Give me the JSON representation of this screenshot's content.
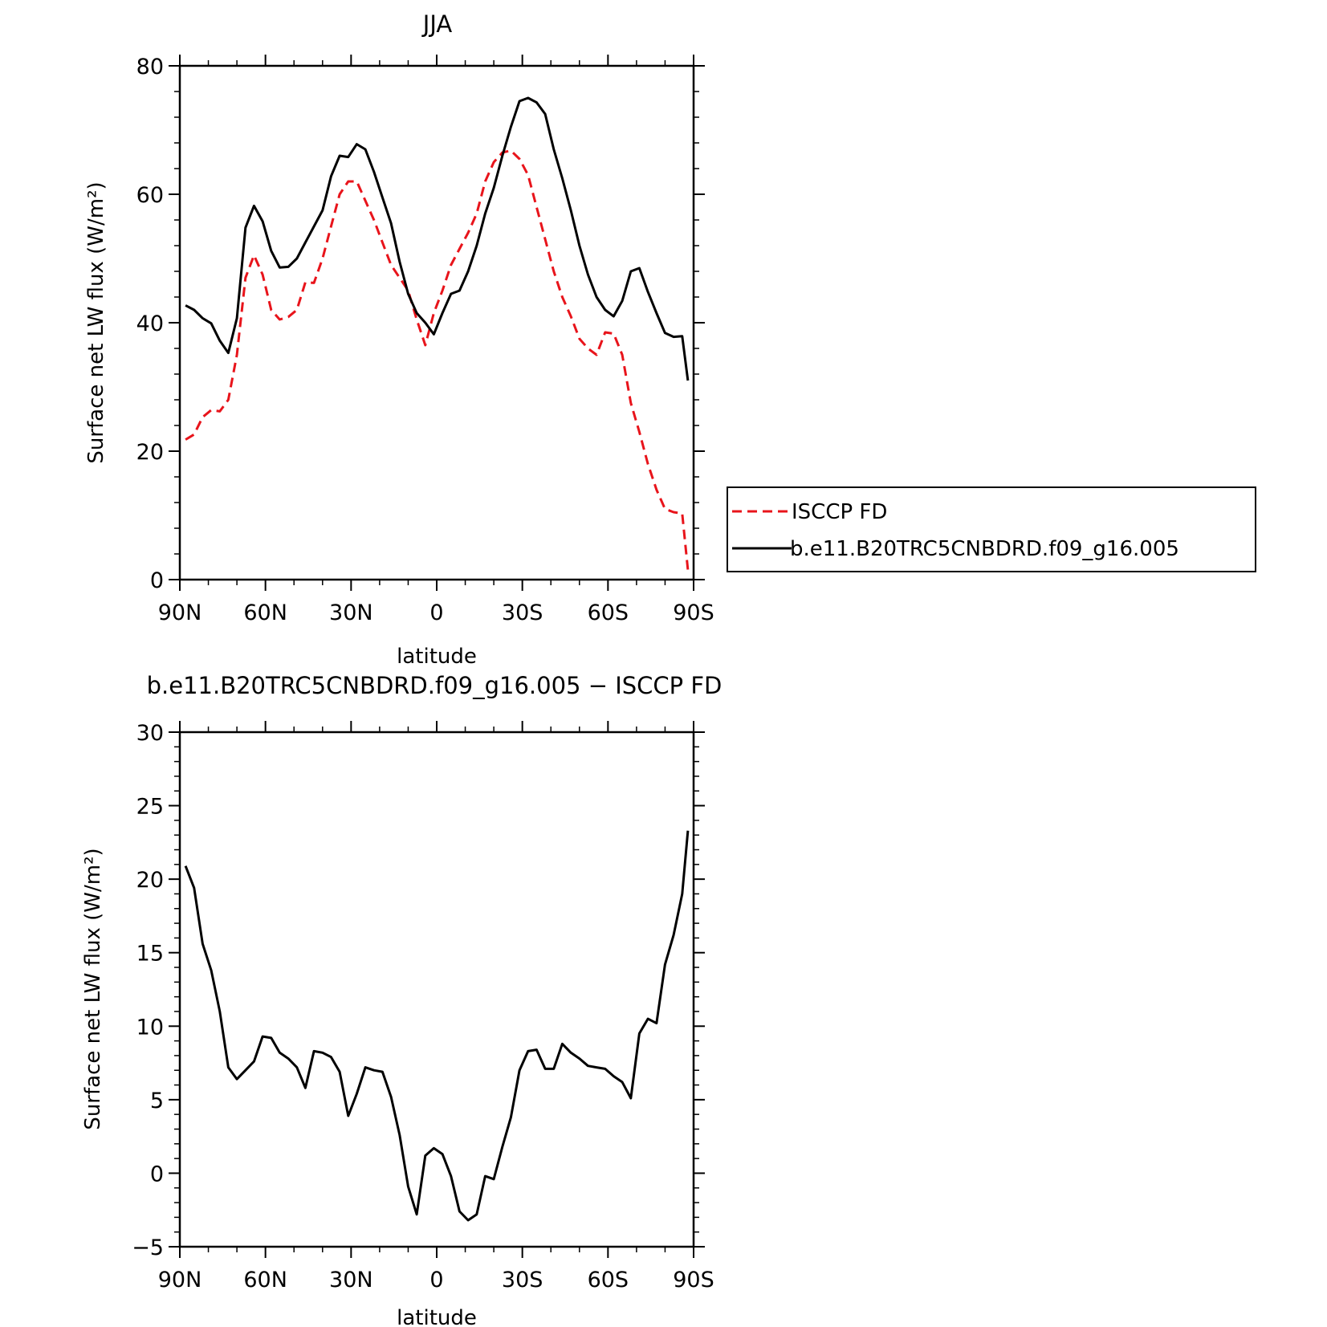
{
  "chart_data": [
    {
      "type": "line",
      "title": "JJA",
      "xlabel": "latitude",
      "ylabel": "Surface net LW flux (W/m²)",
      "xlim": [
        -90,
        90
      ],
      "ylim": [
        0,
        80
      ],
      "x_direction": "north-to-south",
      "xticks": [
        -90,
        -60,
        -30,
        0,
        30,
        60,
        90
      ],
      "xtick_labels": [
        "90N",
        "60N",
        "30N",
        "0",
        "30S",
        "60S",
        "90S"
      ],
      "yticks": [
        0,
        20,
        40,
        60,
        80
      ],
      "ytick_labels": [
        "0",
        "20",
        "40",
        "60",
        "80"
      ],
      "legend_placement": "right",
      "series": [
        {
          "name": "ISCCP FD",
          "color": "#e8141b",
          "style": "dashed",
          "x": [
            -88,
            -85,
            -82,
            -79,
            -76,
            -73,
            -70,
            -67,
            -64,
            -61,
            -58,
            -55,
            -52,
            -49,
            -46,
            -43,
            -40,
            -37,
            -34,
            -31,
            -28,
            -25,
            -22,
            -19,
            -16,
            -13,
            -10,
            -7,
            -4,
            -1,
            2,
            5,
            8,
            11,
            14,
            17,
            20,
            23,
            26,
            29,
            32,
            35,
            38,
            41,
            44,
            47,
            50,
            53,
            56,
            59,
            62,
            65,
            68,
            71,
            74,
            77,
            80,
            83,
            86,
            88
          ],
          "y": [
            21.8,
            22.6,
            25.3,
            26.4,
            26.2,
            28.0,
            35.0,
            47.0,
            50.5,
            47.5,
            42.0,
            40.5,
            40.9,
            42.0,
            46.3,
            46.2,
            50.0,
            55.0,
            60.0,
            62.0,
            62.0,
            59.0,
            56.0,
            52.5,
            49.0,
            47.0,
            45.0,
            40.5,
            36.5,
            41.5,
            45.0,
            49.0,
            51.5,
            54.0,
            57.0,
            62.0,
            65.0,
            66.5,
            66.8,
            65.5,
            63.0,
            58.0,
            53.0,
            48.0,
            44.0,
            41.0,
            37.5,
            36.0,
            35.0,
            38.5,
            38.3,
            35.0,
            27.5,
            23.0,
            18.0,
            14.0,
            11.0,
            10.5,
            10.3,
            1.5
          ]
        },
        {
          "name": "b.e11.B20TRC5CNBDRD.f09_g16.005",
          "color": "#000000",
          "style": "solid",
          "x": [
            -88,
            -85,
            -82,
            -79,
            -76,
            -73,
            -70,
            -67,
            -64,
            -61,
            -58,
            -55,
            -52,
            -49,
            -46,
            -43,
            -40,
            -37,
            -34,
            -31,
            -28,
            -25,
            -22,
            -19,
            -16,
            -13,
            -10,
            -7,
            -4,
            -1,
            2,
            5,
            8,
            11,
            14,
            17,
            20,
            23,
            26,
            29,
            32,
            35,
            38,
            41,
            44,
            47,
            50,
            53,
            56,
            59,
            62,
            65,
            68,
            71,
            74,
            77,
            80,
            83,
            86,
            88
          ],
          "y": [
            42.7,
            42.0,
            40.7,
            39.9,
            37.2,
            35.3,
            40.7,
            54.8,
            58.2,
            55.8,
            51.2,
            48.6,
            48.7,
            50.0,
            52.5,
            55.0,
            57.5,
            62.8,
            66.0,
            65.8,
            67.8,
            67.0,
            63.5,
            59.5,
            55.5,
            49.5,
            44.5,
            41.5,
            40.0,
            38.2,
            41.5,
            44.5,
            45.0,
            48.0,
            52.0,
            57.0,
            61.0,
            66.0,
            70.5,
            74.5,
            75.0,
            74.3,
            72.5,
            67.0,
            62.5,
            57.5,
            52.0,
            47.5,
            44.0,
            42.0,
            41.0,
            43.4,
            48.0,
            48.5,
            44.8,
            41.5,
            38.4,
            37.8,
            37.9,
            31.0
          ]
        }
      ]
    },
    {
      "type": "line",
      "title": "b.e11.B20TRC5CNBDRD.f09_g16.005 − ISCCP FD",
      "xlabel": "latitude",
      "ylabel": "Surface net LW flux (W/m²)",
      "xlim": [
        -90,
        90
      ],
      "ylim": [
        -5,
        30
      ],
      "x_direction": "north-to-south",
      "xticks": [
        -90,
        -60,
        -30,
        0,
        30,
        60,
        90
      ],
      "xtick_labels": [
        "90N",
        "60N",
        "30N",
        "0",
        "30S",
        "60S",
        "90S"
      ],
      "yticks": [
        -5,
        0,
        5,
        10,
        15,
        20,
        25,
        30
      ],
      "ytick_labels": [
        "−5",
        "0",
        "5",
        "10",
        "15",
        "20",
        "25",
        "30"
      ],
      "series": [
        {
          "color": "#000000",
          "style": "solid",
          "x": [
            -88,
            -85,
            -82,
            -79,
            -76,
            -73,
            -70,
            -67,
            -64,
            -61,
            -58,
            -55,
            -52,
            -49,
            -46,
            -43,
            -40,
            -37,
            -34,
            -31,
            -28,
            -25,
            -22,
            -19,
            -16,
            -13,
            -10,
            -7,
            -4,
            -1,
            2,
            5,
            8,
            11,
            14,
            17,
            20,
            23,
            26,
            29,
            32,
            35,
            38,
            41,
            44,
            47,
            50,
            53,
            56,
            59,
            62,
            65,
            68,
            71,
            74,
            77,
            80,
            83,
            86,
            88
          ],
          "y": [
            20.9,
            19.4,
            15.6,
            13.8,
            11.0,
            7.2,
            6.4,
            7.0,
            7.6,
            9.3,
            9.2,
            8.2,
            7.8,
            7.2,
            5.8,
            8.3,
            8.2,
            7.9,
            6.9,
            3.9,
            5.4,
            7.2,
            7.0,
            6.9,
            5.2,
            2.6,
            -0.9,
            -2.8,
            1.2,
            1.7,
            1.3,
            -0.2,
            -2.6,
            -3.2,
            -2.8,
            -0.2,
            -0.4,
            1.8,
            3.8,
            7.0,
            8.3,
            8.4,
            7.1,
            7.1,
            8.8,
            8.2,
            7.8,
            7.3,
            7.2,
            7.1,
            6.6,
            6.2,
            5.1,
            9.5,
            10.5,
            10.2,
            14.2,
            16.2,
            19.0,
            23.3
          ]
        }
      ]
    }
  ]
}
